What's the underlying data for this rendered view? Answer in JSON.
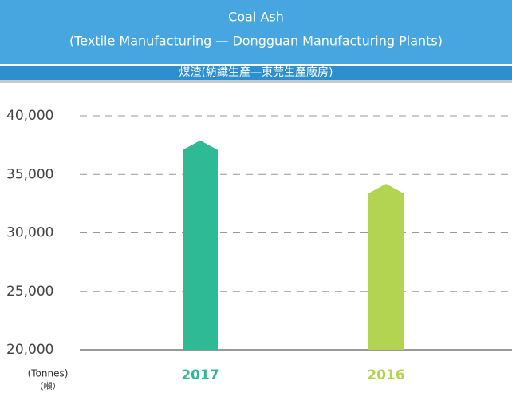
{
  "chart_data": {
    "type": "bar",
    "title": "Coal Ash",
    "subtitle": "(Textile Manufacturing — Dongguan Manufacturing Plants)",
    "title_zh": "煤渣(紡織生產—東莞生產廠房)",
    "y_unit": "(Tonnes)",
    "y_unit_zh": "（噸）",
    "categories": [
      "2017",
      "2016"
    ],
    "values": [
      37900,
      34200
    ],
    "colors": [
      "#2dba94",
      "#b2d450"
    ],
    "ylim": [
      20000,
      40000
    ],
    "yticks": [
      {
        "value": 20000,
        "label": "20,000"
      },
      {
        "value": 25000,
        "label": "25,000"
      },
      {
        "value": 30000,
        "label": "30,000"
      },
      {
        "value": 35000,
        "label": "35,000"
      },
      {
        "value": 40000,
        "label": "40,000"
      }
    ],
    "grid": true
  }
}
